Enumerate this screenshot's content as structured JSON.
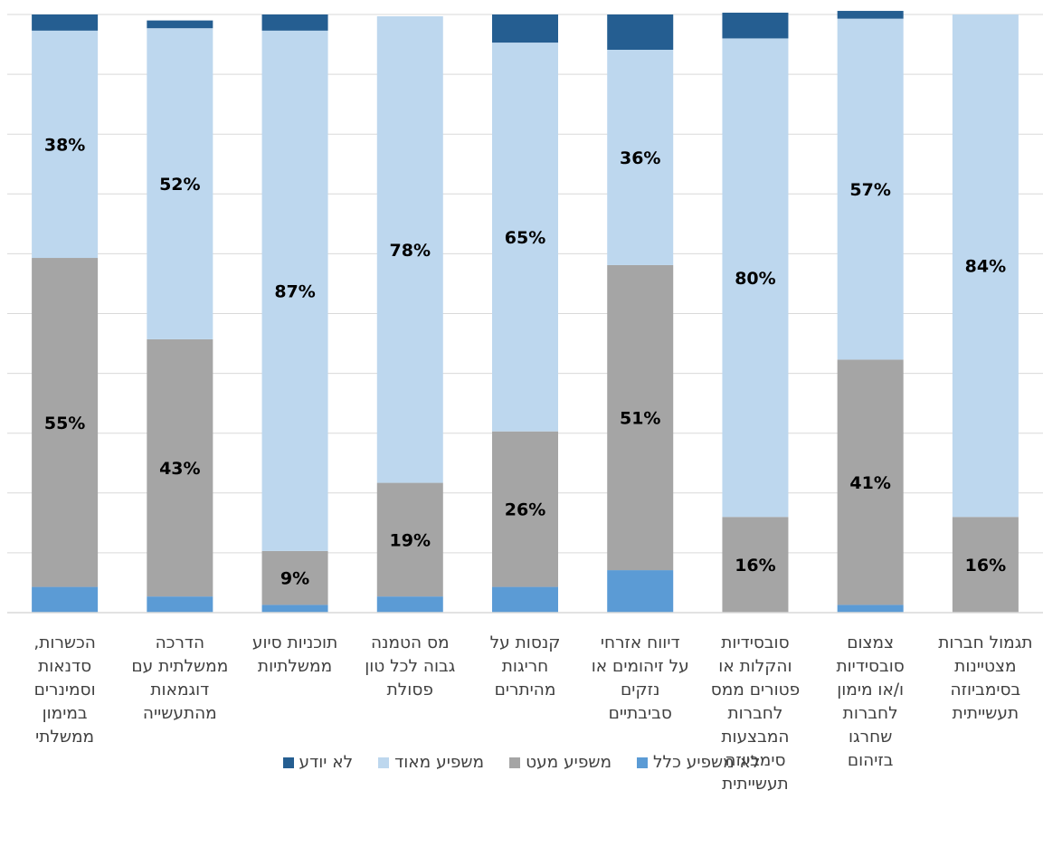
{
  "chart_data": {
    "type": "bar",
    "stacked": true,
    "percent": true,
    "grid": true,
    "legend_position": "bottom",
    "categories": [
      "הכשרות, סדנאות וסמינרים במימון ממשלתי",
      "הדרכה ממשלתית עם דוגמאות מהתעשייה",
      "תוכניות סיוע ממשלתיות",
      "מס הטמנה גבוה לכל טון פסולת",
      "קנסות על חריגות מהיתרים",
      "דיווח אזרחי על זיהומים או נזקים סביבתיים",
      "סובסידיות והקלות או פטורים ממס לחברות המבצעות סימביוזה תעשייתית",
      "צמצום סובסידיות ו/או מימון לחברות שחרגו בזיהום",
      "תגמול חברות מצטיינות בסימביוזה תעשייתית"
    ],
    "category_lines": [
      [
        "הכשרות,",
        "סדנאות",
        "וסמינרים",
        "במימון",
        "ממשלתי"
      ],
      [
        "הדרכה",
        "ממשלתית עם",
        "דוגמאות",
        "מהתעשייה"
      ],
      [
        "תוכניות סיוע",
        "ממשלתיות"
      ],
      [
        "מס הטמנה",
        "גבוה לכל טון",
        "פסולת"
      ],
      [
        "קנסות על",
        "חריגות",
        "מהיתרים"
      ],
      [
        "דיווח אזרחי",
        "על זיהומים או",
        "נזקים",
        "סביבתיים"
      ],
      [
        "סובסידיות",
        "והקלות או",
        "פטורים ממס",
        "לחברות",
        "המבצעות",
        "סימביוזה",
        "תעשייתית"
      ],
      [
        "צמצום",
        "סובסידיות",
        "ו/או מימון",
        "לחברות",
        "שחרגו",
        "בזיהום"
      ],
      [
        "תגמול חברות",
        "מצטיינות",
        "בסימביוזה",
        "תעשייתית"
      ]
    ],
    "series": [
      {
        "name": "לא משפיע כלל",
        "color": "#5b9bd5",
        "values": [
          4.3,
          2.7,
          1.3,
          2.7,
          4.3,
          7.1,
          0,
          1.3,
          0
        ]
      },
      {
        "name": "משפיע מעט",
        "color": "#a5a5a5",
        "values": [
          55,
          43,
          9,
          19,
          26,
          51,
          16,
          41,
          16
        ]
      },
      {
        "name": "משפיע מאוד",
        "color": "#bdd7ee",
        "values": [
          38,
          52,
          87,
          78,
          65,
          36,
          80,
          57,
          84
        ]
      },
      {
        "name": "לא יודע",
        "color": "#255e91",
        "values": [
          2.7,
          1.3,
          2.7,
          0,
          4.7,
          5.9,
          4.3,
          1.3,
          0
        ]
      }
    ],
    "data_labels": [
      [
        null,
        null,
        null,
        null,
        null,
        null,
        null,
        null,
        null
      ],
      [
        "55%",
        "43%",
        "9%",
        "19%",
        "26%",
        "51%",
        "16%",
        "41%",
        "16%"
      ],
      [
        "38%",
        "52%",
        "87%",
        "78%",
        "65%",
        "36%",
        "80%",
        "57%",
        "84%"
      ],
      [
        null,
        null,
        null,
        null,
        null,
        null,
        null,
        null,
        null
      ]
    ],
    "ylim": [
      0,
      100
    ]
  }
}
